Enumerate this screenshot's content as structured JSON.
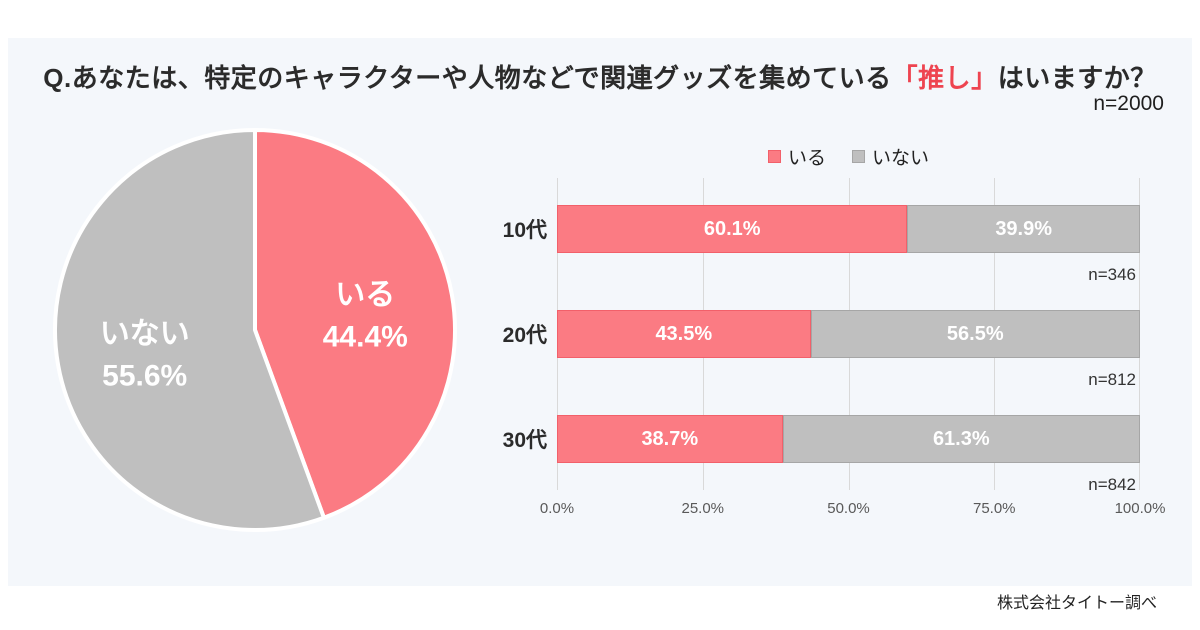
{
  "page": {
    "background": "#FFFFFF",
    "card_background": "#F4F7FB"
  },
  "title": {
    "prefix": "Q.あなたは、特定のキャラクターや人物などで関連グッズを集めている",
    "highlight": "「推し」",
    "suffix": "はいますか？",
    "highlight_color": "#EE4450"
  },
  "sample_size": "n=2000",
  "source": "株式会社タイトー調べ",
  "chart_data": [
    {
      "type": "pie",
      "labels": [
        "いる",
        "いない"
      ],
      "values": [
        44.4,
        55.6
      ],
      "display_values": [
        "44.4%",
        "55.6%"
      ],
      "colors": [
        "#FB7B83",
        "#BFBFBF"
      ],
      "start_angle_deg": 0,
      "direction": "clockwise",
      "slice_border_color": "#FFFFFF",
      "label_color": "#FFFFFF"
    },
    {
      "type": "bar",
      "orientation": "horizontal",
      "stacked": true,
      "categories": [
        "10代",
        "20代",
        "30代"
      ],
      "series": [
        {
          "name": "いる",
          "values": [
            60.1,
            43.5,
            38.7
          ],
          "color": "#FB7B83",
          "border_color": "#F2606A"
        },
        {
          "name": "いない",
          "values": [
            39.9,
            56.5,
            61.3
          ],
          "color": "#BFBFBF",
          "border_color": "#A6A6A6"
        }
      ],
      "sample_sizes": [
        "n=346",
        "n=812",
        "n=842"
      ],
      "x_ticks": [
        "0.0%",
        "25.0%",
        "50.0%",
        "75.0%",
        "100.0%"
      ],
      "xlim": [
        0,
        100
      ],
      "grid": true,
      "legend_position": "top",
      "value_suffix": "%"
    }
  ]
}
